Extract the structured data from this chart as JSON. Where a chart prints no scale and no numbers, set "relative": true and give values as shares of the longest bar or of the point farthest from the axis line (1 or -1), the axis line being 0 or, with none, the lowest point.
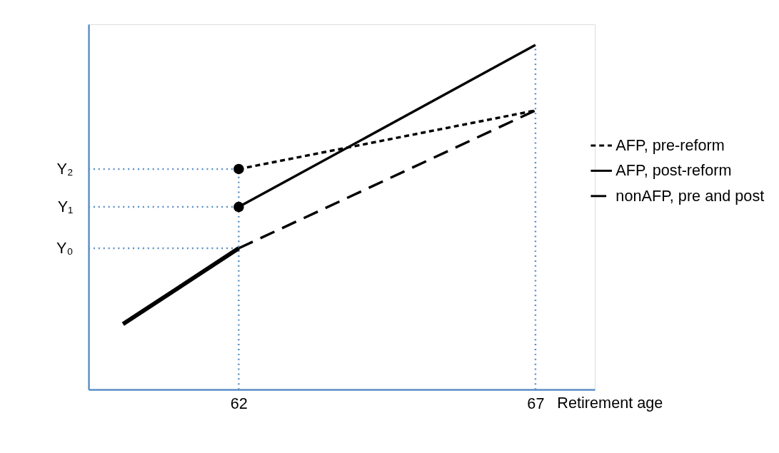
{
  "chart_data": {
    "type": "line",
    "relative": true,
    "xlabel": "Retirement age",
    "xlim": [
      59.47,
      68.0
    ],
    "xticks": [
      62,
      67
    ],
    "series": [
      {
        "name": "AFP, pre-reform",
        "color": "#000000",
        "line_style": "dashed",
        "x": [
          62,
          67
        ],
        "values": [
          0.64,
          0.81
        ]
      },
      {
        "name": "AFP, post-reform",
        "color": "#000000",
        "line_style": "solid",
        "x": [
          62,
          67
        ],
        "values": [
          0.53,
          1
        ]
      },
      {
        "name": "nonAFP, pre and post",
        "color": "#000000",
        "line_style": "dashed",
        "x": [
          62,
          67
        ],
        "values": [
          0.41,
          0.81
        ]
      },
      {
        "color": "#000000",
        "line_style": "solid",
        "x": [
          60.05,
          62
        ],
        "values": [
          0.19,
          0.41
        ]
      },
      {
        "type": "scatter",
        "marker": "circle",
        "color": "#000000",
        "x": [
          62,
          62
        ],
        "values": [
          0.64,
          0.53
        ]
      }
    ],
    "ref_lines": [
      {
        "axis": "y",
        "value": 0.64,
        "label": "Y₂",
        "color": "#5b8fc7",
        "line_style": "dotted"
      },
      {
        "axis": "y",
        "value": 0.53,
        "label": "Y₁",
        "color": "#5b8fc7",
        "line_style": "dotted"
      },
      {
        "axis": "y",
        "value": 0.41,
        "label": "Y₀",
        "color": "#5b8fc7",
        "line_style": "dotted"
      },
      {
        "axis": "x",
        "value": 62,
        "color": "#5b8fc7",
        "line_style": "dotted"
      },
      {
        "axis": "x",
        "value": 67,
        "color": "#5b8fc7",
        "line_style": "dotted"
      }
    ],
    "legend": "right",
    "grid": false
  }
}
